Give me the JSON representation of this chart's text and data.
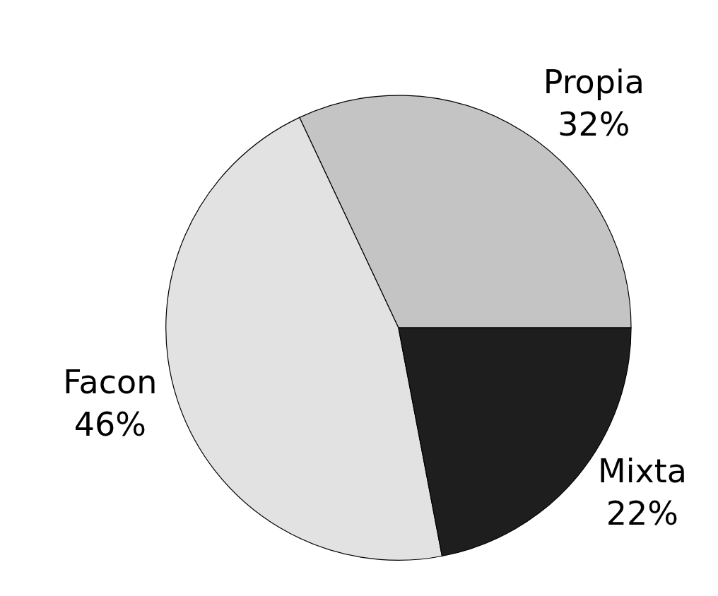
{
  "chart_data": {
    "type": "pie",
    "categories": [
      "Propia",
      "Facon",
      "Mixta"
    ],
    "values": [
      32,
      46,
      22
    ],
    "value_labels": [
      "32%",
      "46%",
      "22%"
    ],
    "colors": [
      "#c4c4c4",
      "#e2e2e2",
      "#1e1e1e"
    ]
  }
}
